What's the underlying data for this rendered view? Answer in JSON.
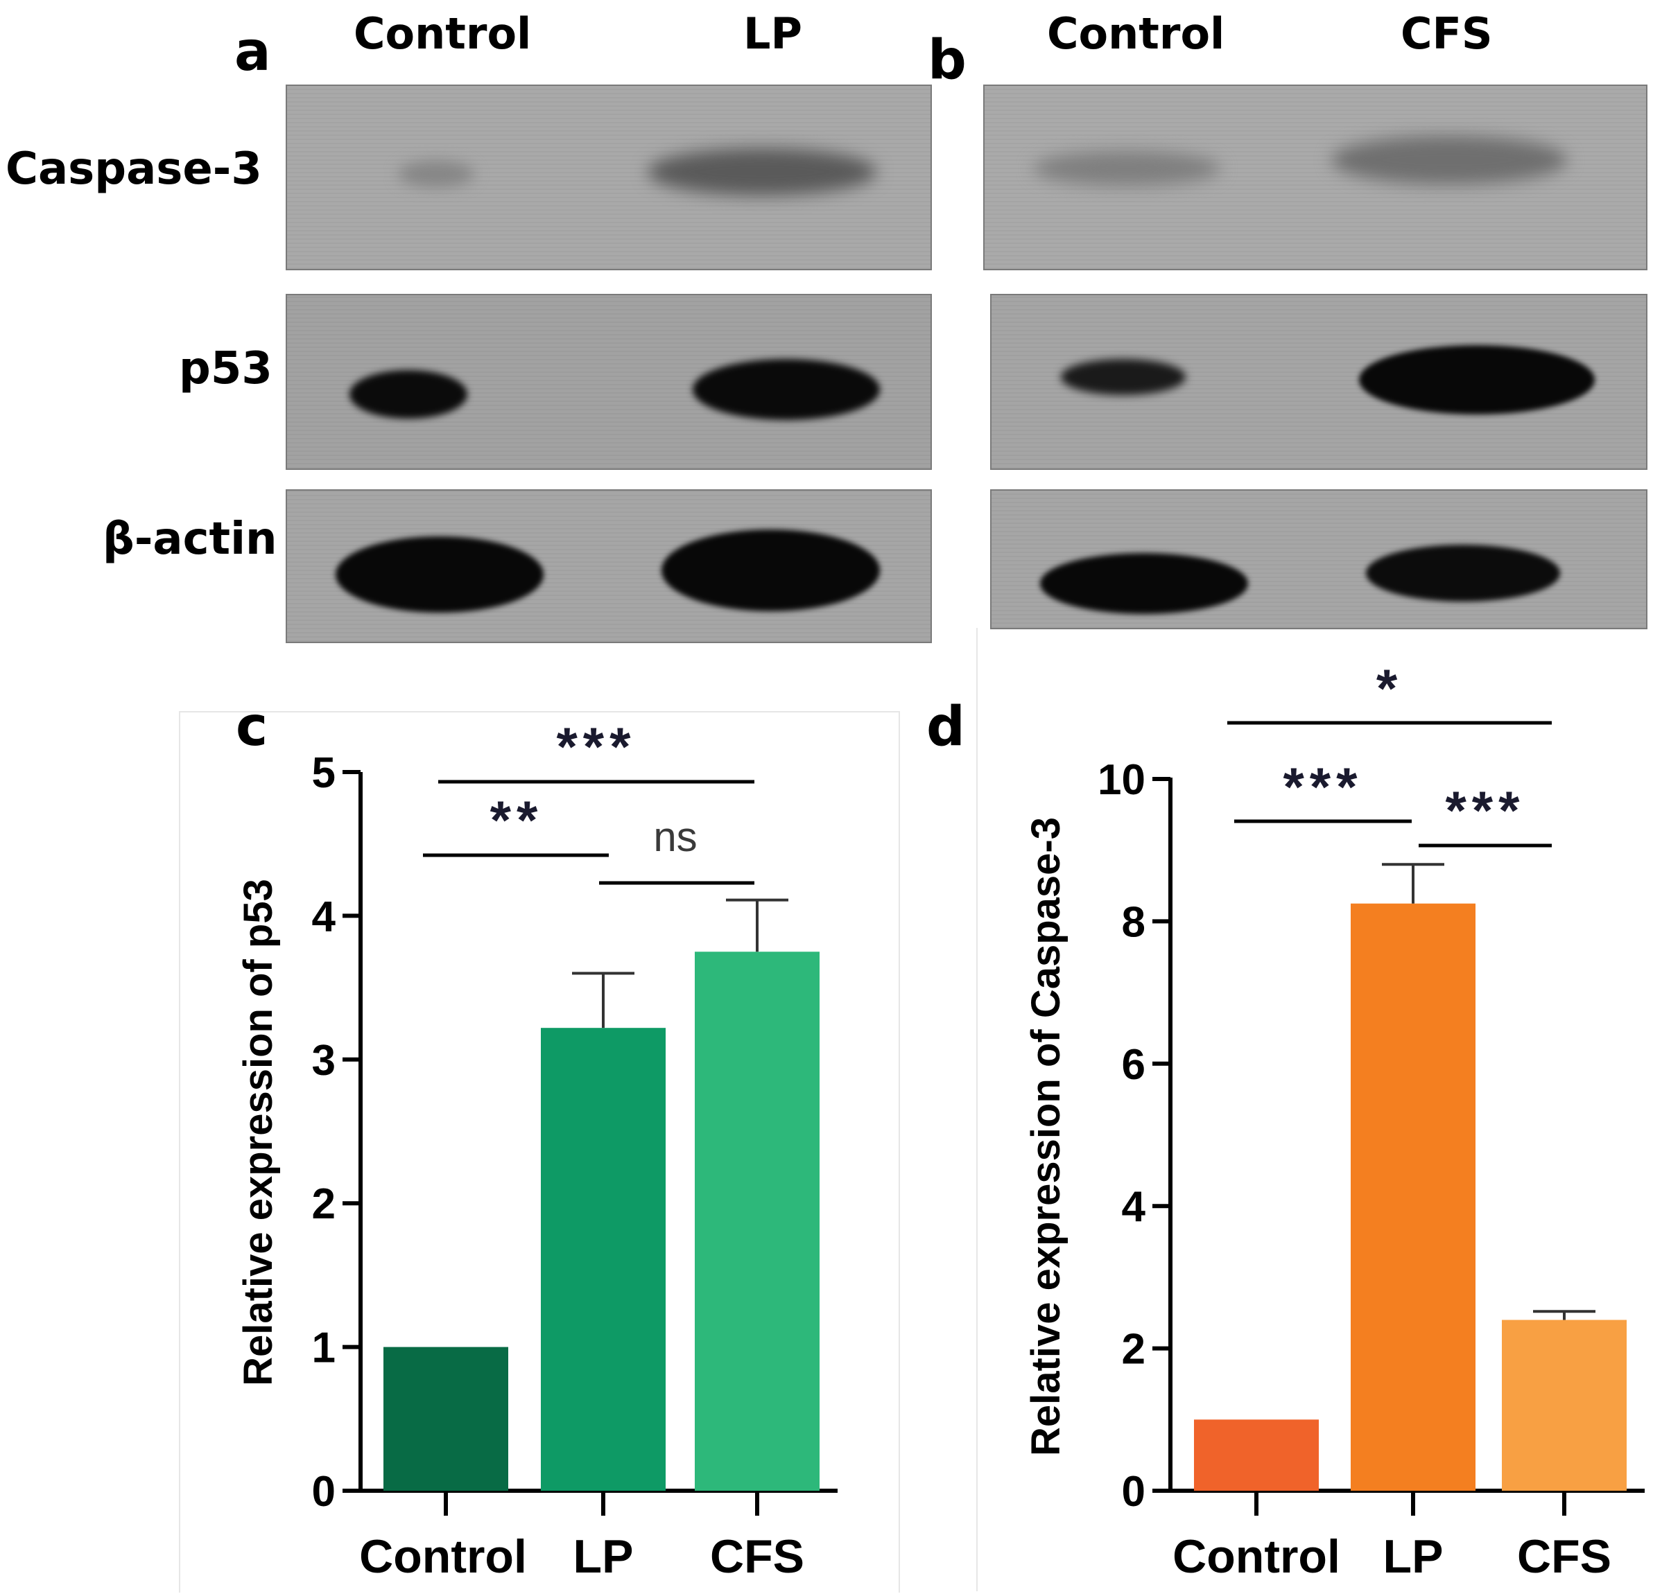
{
  "blots": {
    "a": {
      "panel_label": "a",
      "lanes": [
        "Control",
        "LP"
      ],
      "rows": [
        "Caspase-3",
        "p53",
        "β-actin"
      ]
    },
    "b": {
      "panel_label": "b",
      "lanes": [
        "Control",
        "CFS"
      ],
      "colors": {
        "background": "#a6a6a6",
        "band": "#0a0a0a"
      }
    }
  },
  "chart_data": [
    {
      "panel_label": "c",
      "type": "bar",
      "categories": [
        "Control",
        "LP",
        "CFS"
      ],
      "values": [
        1.0,
        3.22,
        3.75
      ],
      "errors": [
        0,
        0.38,
        0.36
      ],
      "ylabel": "Relative expression of p53",
      "ylim": [
        0,
        5
      ],
      "yticks": [
        "0",
        "1",
        "2",
        "3",
        "4",
        "5"
      ],
      "colors": [
        "#086b45",
        "#0e9a65",
        "#2db87a"
      ],
      "significance": [
        {
          "from": "Control",
          "to": "LP",
          "label": "**"
        },
        {
          "from": "LP",
          "to": "CFS",
          "label": "ns"
        },
        {
          "from": "Control",
          "to": "CFS",
          "label": "***"
        }
      ]
    },
    {
      "panel_label": "d",
      "type": "bar",
      "categories": [
        "Control",
        "LP",
        "CFS"
      ],
      "values": [
        1.0,
        8.25,
        2.4
      ],
      "errors": [
        0,
        0.55,
        0.12
      ],
      "ylabel": "Relative expression of Caspase-3",
      "ylim": [
        0,
        10
      ],
      "yticks": [
        "0",
        "2",
        "4",
        "6",
        "8",
        "10"
      ],
      "colors": [
        "#f0632a",
        "#f47f20",
        "#f8a043"
      ],
      "significance": [
        {
          "from": "Control",
          "to": "LP",
          "label": "***"
        },
        {
          "from": "LP",
          "to": "CFS",
          "label": "***"
        },
        {
          "from": "Control",
          "to": "CFS",
          "label": "*"
        }
      ]
    }
  ]
}
